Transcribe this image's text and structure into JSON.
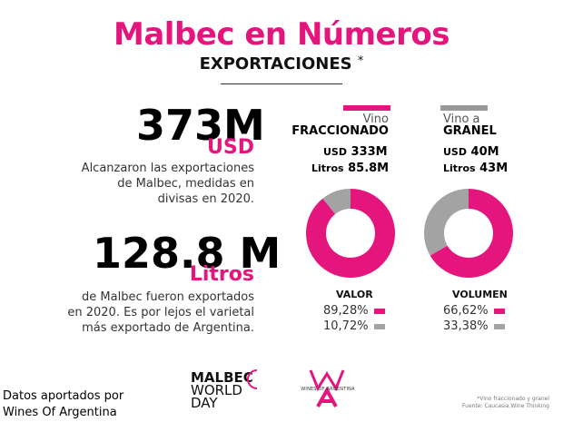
{
  "header": {
    "title": "Malbec en Números",
    "subtitle": "EXPORTACIONES",
    "subtitle_mark": "*"
  },
  "left": {
    "value1": {
      "number": "373M",
      "unit": "USD",
      "text": [
        "Alcanzaron las exportaciones",
        "de Malbec, medidas en",
        "divisas en 2020."
      ]
    },
    "value2": {
      "number": "128.8 M",
      "unit": "Litros",
      "text": [
        "de Malbec fueron exportados",
        "en 2020. Es por lejos el varietal",
        "más exportado de Argentina."
      ]
    }
  },
  "categories": [
    {
      "top": "Vino",
      "bold": "FRACCIONADO",
      "usd_label": "USD",
      "usd_value": "333M",
      "litros_label": "Litros",
      "litros_value": "85.8M",
      "bar_color": "#e5157e"
    },
    {
      "top": "Vino a",
      "bold": "GRANEL",
      "usd_label": "USD",
      "usd_value": "40M",
      "litros_label": "Litros",
      "litros_value": "43M",
      "bar_color": "#999999"
    }
  ],
  "chart_data": [
    {
      "type": "pie",
      "title": "VALOR",
      "labels": [
        "Vino fraccionado",
        "Vino a granel"
      ],
      "values": [
        89.28,
        10.72
      ],
      "display": [
        "89,28%",
        "10,72%"
      ],
      "colors": [
        "#e5157e",
        "#a3a3a3"
      ],
      "style": "donut"
    },
    {
      "type": "pie",
      "title": "VOLUMEN",
      "labels": [
        "Vino fraccionado",
        "Vino a granel"
      ],
      "values": [
        66.62,
        33.38
      ],
      "display": [
        "66,62%",
        "33,38%"
      ],
      "colors": [
        "#e5157e",
        "#a3a3a3"
      ],
      "style": "donut"
    }
  ],
  "logos": {
    "malbec_line1": "MALBEC",
    "malbec_line2": "WORLD",
    "malbec_line3": "DAY",
    "wines_text": "WINES OF ARGENTINA"
  },
  "credit": [
    "Datos aportados por",
    "Wines Of Argentina"
  ],
  "footnote": [
    "*Vino fraccionado y granel",
    "Fuente: Caucasia Wine Thinking"
  ]
}
